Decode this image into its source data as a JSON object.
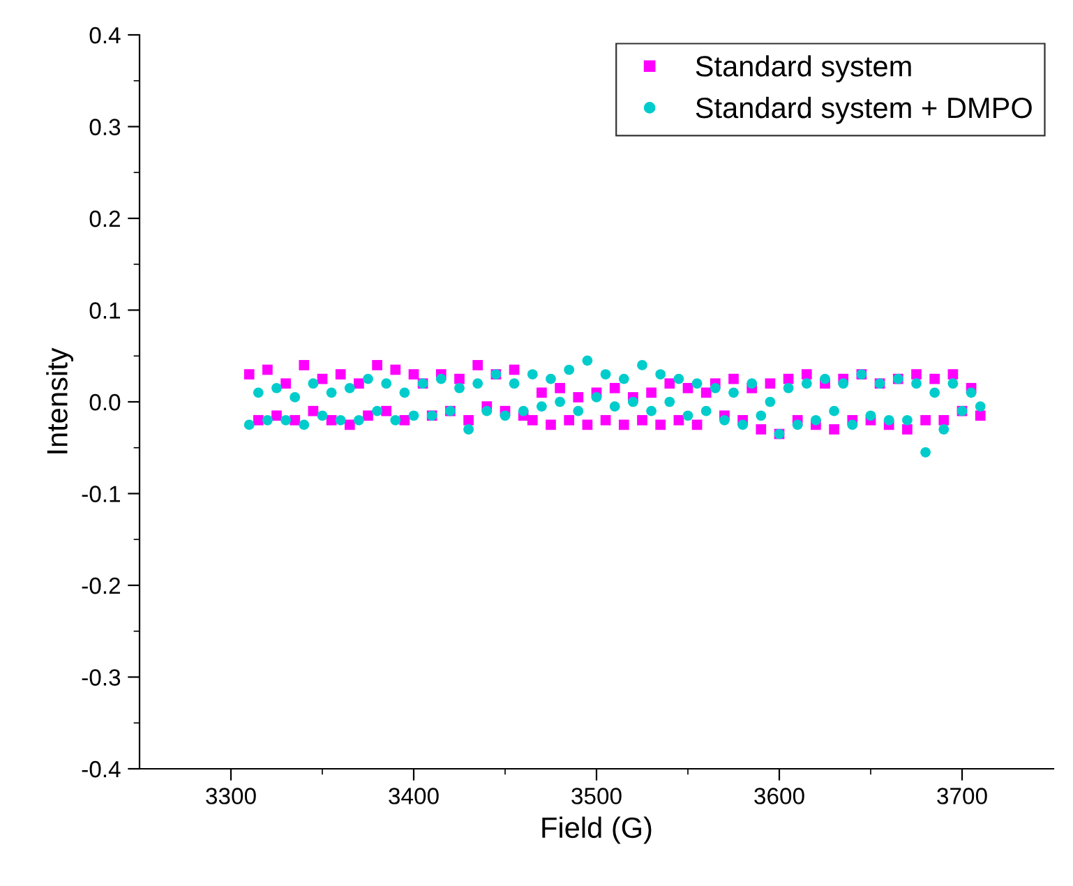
{
  "chart_data": {
    "type": "scatter",
    "xlabel": "Field (G)",
    "ylabel": "Intensity",
    "xlim": [
      3250,
      3750
    ],
    "xticks": [
      3300,
      {
        "value": 3350,
        "label": null
      },
      3400,
      {
        "value": 3450,
        "label": null
      },
      3500,
      {
        "value": 3550,
        "label": null
      },
      3600,
      {
        "value": 3650,
        "label": null
      },
      3700
    ],
    "ylim": [
      -0.4,
      0.4
    ],
    "yticks": [
      -0.4,
      {
        "value": -0.35,
        "label": null
      },
      -0.3,
      {
        "value": -0.25,
        "label": null
      },
      -0.2,
      {
        "value": -0.15,
        "label": null
      },
      -0.1,
      {
        "value": -0.05,
        "label": null
      },
      {
        "value": 0,
        "label": "0.0"
      },
      {
        "value": 0.05,
        "label": null
      },
      0.1,
      {
        "value": 0.15,
        "label": null
      },
      0.2,
      {
        "value": 0.25,
        "label": null
      },
      0.3,
      {
        "value": 0.35,
        "label": null
      },
      0.4
    ],
    "x": [
      3310,
      3315,
      3320,
      3325,
      3330,
      3335,
      3340,
      3345,
      3350,
      3355,
      3360,
      3365,
      3370,
      3375,
      3380,
      3385,
      3390,
      3395,
      3400,
      3405,
      3410,
      3415,
      3420,
      3425,
      3430,
      3435,
      3440,
      3445,
      3450,
      3455,
      3460,
      3465,
      3470,
      3475,
      3480,
      3485,
      3490,
      3495,
      3500,
      3505,
      3510,
      3515,
      3520,
      3525,
      3530,
      3535,
      3540,
      3545,
      3550,
      3555,
      3560,
      3565,
      3570,
      3575,
      3580,
      3585,
      3590,
      3595,
      3600,
      3605,
      3610,
      3615,
      3620,
      3625,
      3630,
      3635,
      3640,
      3645,
      3650,
      3655,
      3660,
      3665,
      3670,
      3675,
      3680,
      3685,
      3690,
      3695,
      3700,
      3705,
      3710
    ],
    "grid": false,
    "legend": "top right",
    "series": [
      {
        "name": "Standard system",
        "color": "#ff00ff",
        "marker": "square",
        "values": [
          0.03,
          -0.02,
          0.035,
          -0.015,
          0.02,
          -0.02,
          0.04,
          -0.01,
          0.025,
          -0.02,
          0.03,
          -0.025,
          0.02,
          -0.015,
          0.04,
          -0.01,
          0.035,
          -0.02,
          0.03,
          0.02,
          -0.015,
          0.03,
          -0.01,
          0.025,
          -0.02,
          0.04,
          -0.005,
          0.03,
          -0.01,
          0.035,
          -0.015,
          -0.02,
          0.01,
          -0.025,
          0.015,
          -0.02,
          0.005,
          -0.025,
          0.01,
          -0.02,
          0.015,
          -0.025,
          0.005,
          -0.02,
          0.01,
          -0.025,
          0.02,
          -0.02,
          0.015,
          -0.025,
          0.01,
          0.02,
          -0.015,
          0.025,
          -0.02,
          0.015,
          -0.03,
          0.02,
          -0.035,
          0.025,
          -0.02,
          0.03,
          -0.025,
          0.02,
          -0.03,
          0.025,
          -0.02,
          0.03,
          -0.02,
          0.02,
          -0.025,
          0.025,
          -0.03,
          0.03,
          -0.02,
          0.025,
          -0.02,
          0.03,
          -0.01,
          0.015,
          -0.015
        ]
      },
      {
        "name": "Standard system + DMPO",
        "color": "#00cccc",
        "marker": "circle",
        "values": [
          -0.025,
          0.01,
          -0.02,
          0.015,
          -0.02,
          0.005,
          -0.025,
          0.02,
          -0.015,
          0.01,
          -0.02,
          0.015,
          -0.02,
          0.025,
          -0.01,
          0.02,
          -0.02,
          0.01,
          -0.015,
          0.02,
          -0.015,
          0.025,
          -0.01,
          0.015,
          -0.03,
          0.02,
          -0.01,
          0.03,
          -0.015,
          0.02,
          -0.01,
          0.03,
          -0.005,
          0.025,
          0.0,
          0.035,
          -0.01,
          0.045,
          0.005,
          0.03,
          -0.005,
          0.025,
          0.0,
          0.04,
          -0.01,
          0.03,
          0.0,
          0.025,
          -0.015,
          0.02,
          -0.01,
          0.015,
          -0.02,
          0.01,
          -0.025,
          0.02,
          -0.015,
          0.0,
          -0.035,
          0.015,
          -0.025,
          0.02,
          -0.02,
          0.025,
          -0.01,
          0.02,
          -0.025,
          0.03,
          -0.015,
          0.02,
          -0.02,
          0.025,
          -0.02,
          0.02,
          -0.055,
          0.01,
          -0.03,
          0.02,
          -0.01,
          0.01,
          -0.005
        ]
      }
    ]
  }
}
